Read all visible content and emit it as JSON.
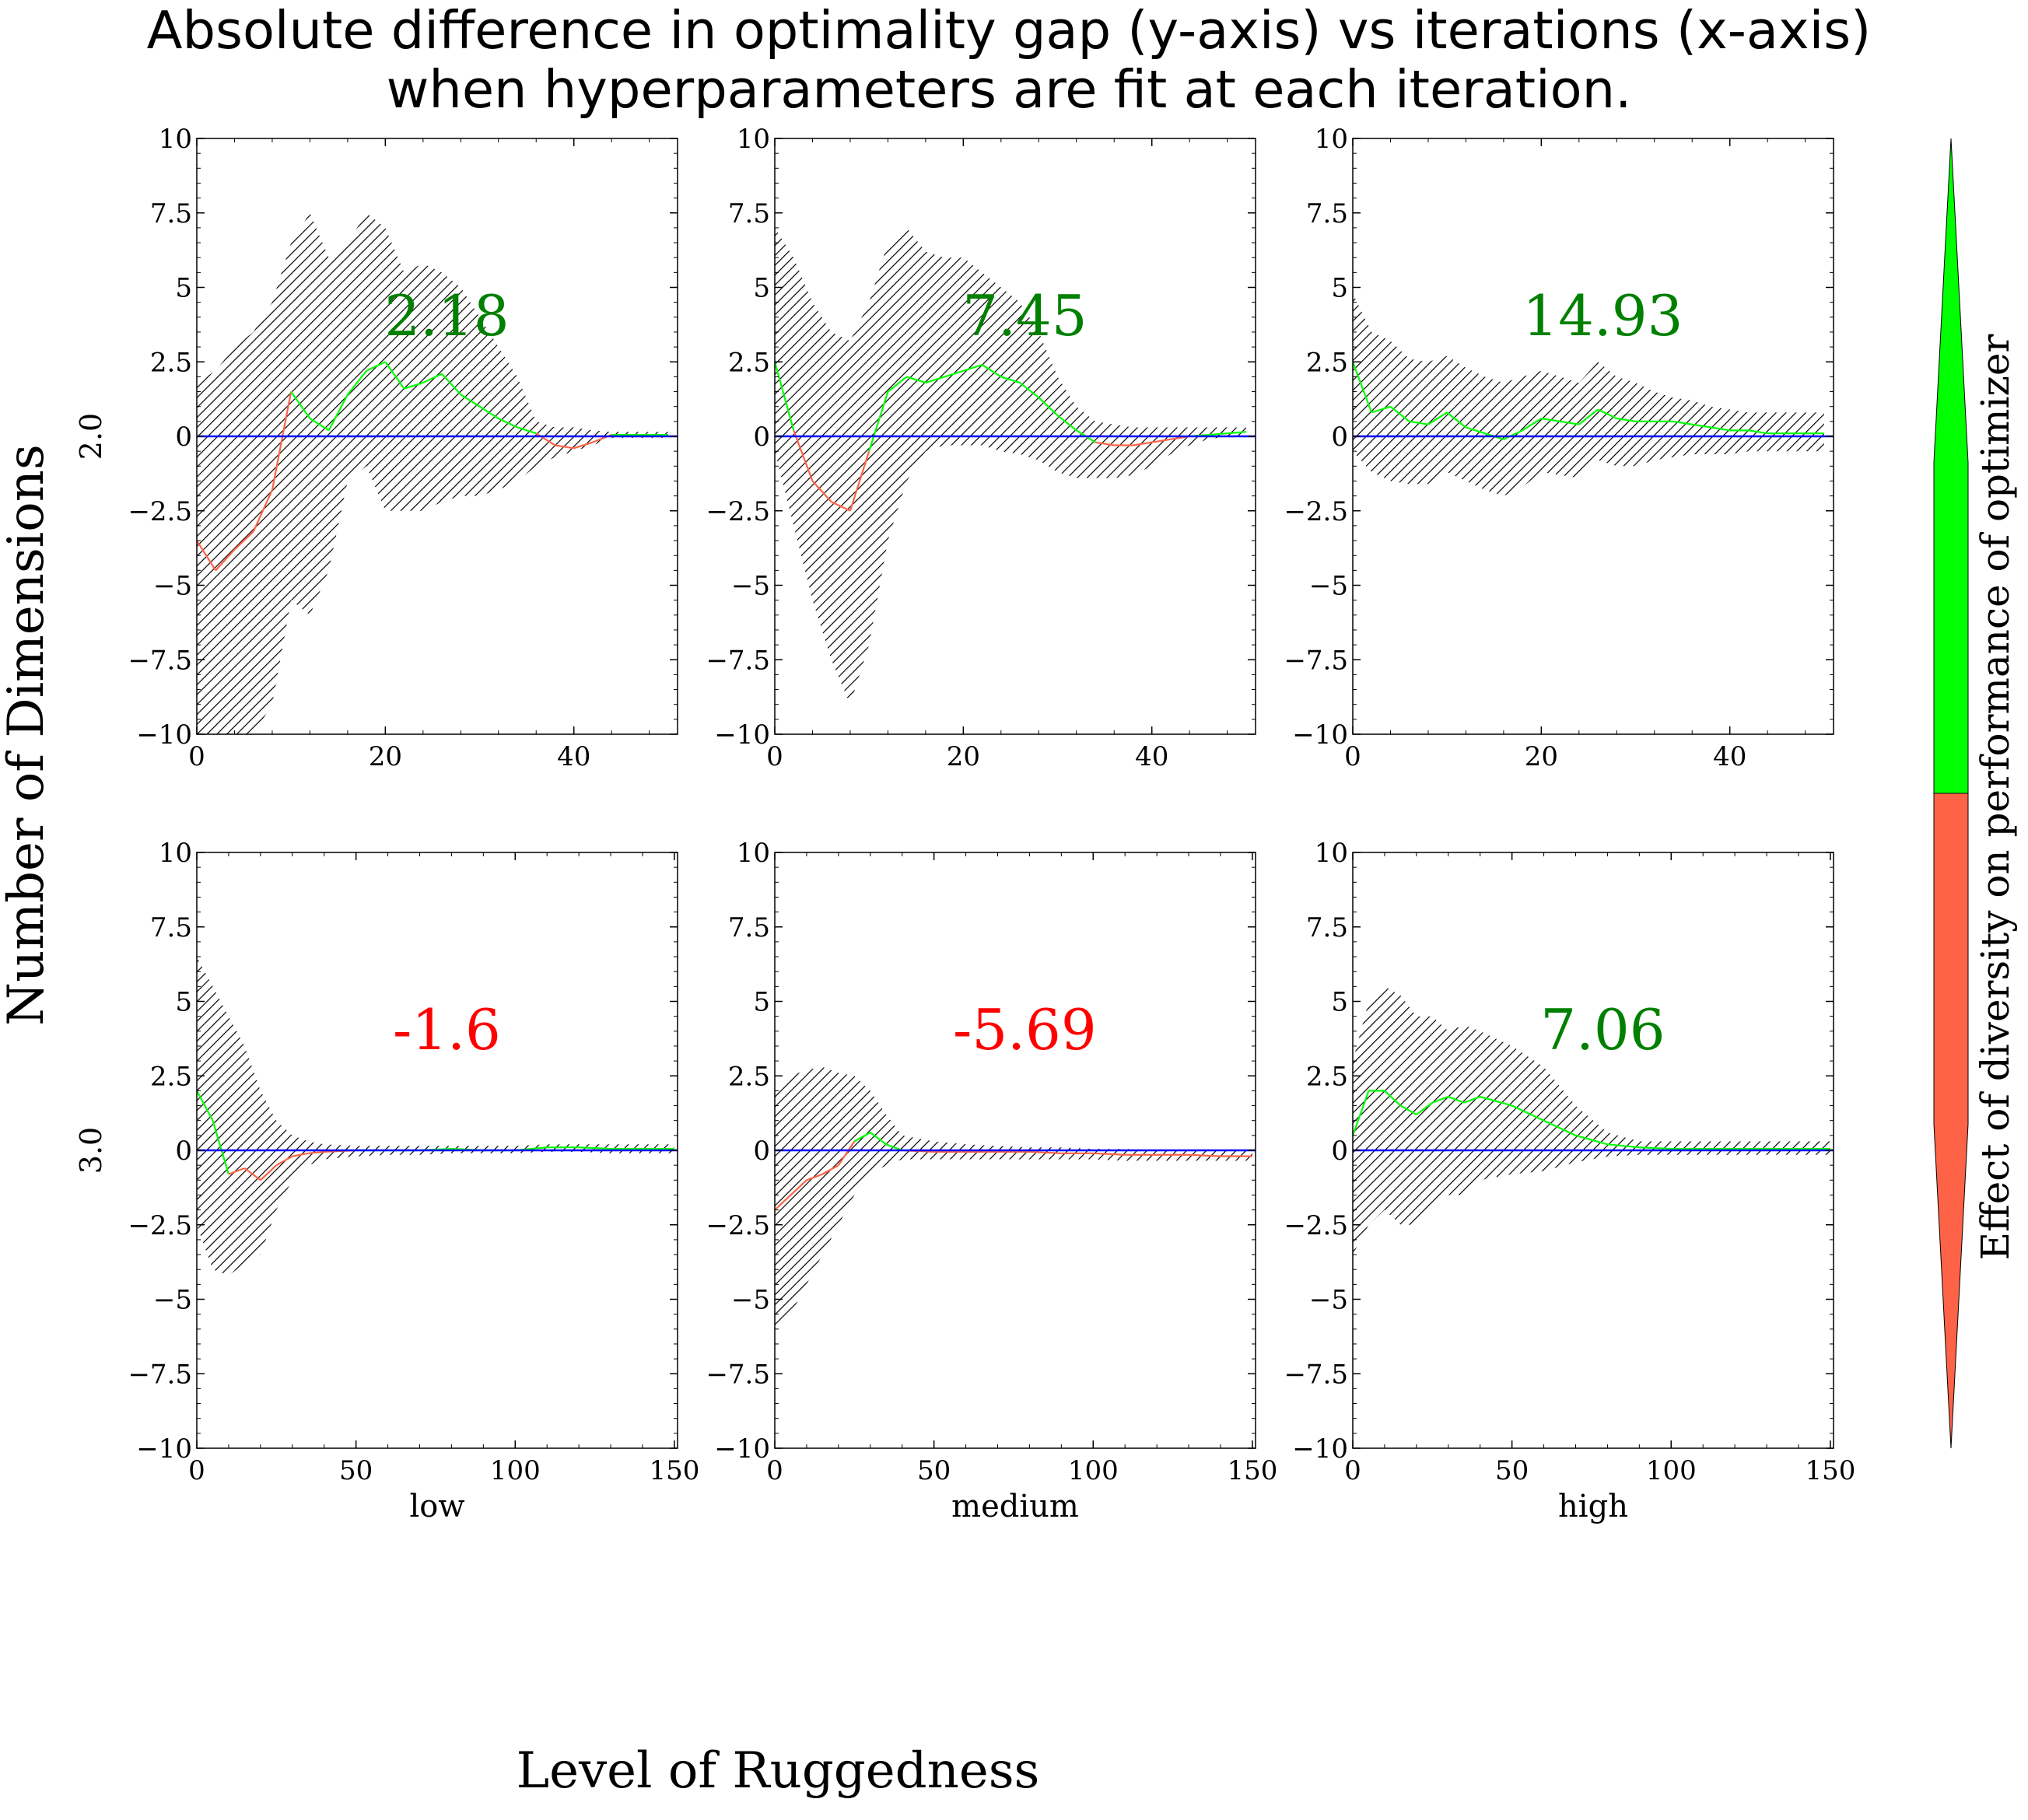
{
  "title_lines": [
    "Absolute difference in optimality gap (y-axis) vs iterations (x-axis)",
    "when hyperparameters are fit at each iteration."
  ],
  "row_axis_label": "Number of Dimensions",
  "col_axis_label": "Level of Ruggedness",
  "colorbar_label": "Effect of diversity on performance of optimizer",
  "colors": {
    "positive": "#00ff00",
    "negative": "#ff6347",
    "positive_text": "#008000",
    "negative_text": "#ff0000",
    "zero_line": "#0000ff",
    "band": "#000000"
  },
  "rows": [
    "2.0",
    "3.0"
  ],
  "cols": [
    "low",
    "medium",
    "high"
  ],
  "chart_data": [
    {
      "type": "line",
      "row": "2.0",
      "col": "low",
      "annotation": "2.18",
      "annotation_sign": "positive",
      "xlim": [
        0,
        51
      ],
      "ylim": [
        -10.0,
        10.0
      ],
      "xticks": [
        0,
        20,
        40
      ],
      "yticks": [
        -10.0,
        -7.5,
        -5.0,
        -2.5,
        0.0,
        2.5,
        5.0,
        7.5,
        10.0
      ],
      "x": [
        0,
        2,
        4,
        6,
        8,
        10,
        12,
        14,
        16,
        18,
        20,
        22,
        24,
        26,
        28,
        30,
        32,
        34,
        36,
        38,
        40,
        42,
        44,
        46,
        48,
        50
      ],
      "y": [
        -3.5,
        -4.5,
        -3.8,
        -3.2,
        -1.8,
        1.5,
        0.6,
        0.2,
        1.4,
        2.2,
        2.5,
        1.6,
        1.8,
        2.1,
        1.4,
        1.0,
        0.6,
        0.3,
        0.1,
        -0.3,
        -0.4,
        -0.2,
        0.05,
        0.05,
        0.05,
        0.05
      ],
      "upper": [
        1.8,
        2.2,
        3.0,
        3.5,
        4.5,
        6.5,
        7.5,
        6.0,
        6.5,
        7.5,
        7.0,
        5.5,
        5.8,
        5.5,
        5.0,
        4.0,
        3.0,
        2.0,
        0.5,
        0.3,
        0.3,
        0.2,
        0.15,
        0.15,
        0.15,
        0.15
      ],
      "lower": [
        -10.0,
        -10.0,
        -10.0,
        -10.0,
        -9.0,
        -5.5,
        -6.0,
        -4.5,
        -1.5,
        -1.0,
        -2.5,
        -2.5,
        -2.5,
        -2.2,
        -2.0,
        -2.0,
        -1.8,
        -1.5,
        -1.0,
        -0.7,
        -0.5,
        -0.3,
        -0.05,
        -0.05,
        -0.05,
        -0.05
      ]
    },
    {
      "type": "line",
      "row": "2.0",
      "col": "medium",
      "annotation": "7.45",
      "annotation_sign": "positive",
      "xlim": [
        0,
        51
      ],
      "ylim": [
        -10.0,
        10.0
      ],
      "xticks": [
        0,
        20,
        40
      ],
      "yticks": [
        -10.0,
        -7.5,
        -5.0,
        -2.5,
        0.0,
        2.5,
        5.0,
        7.5,
        10.0
      ],
      "x": [
        0,
        2,
        4,
        6,
        8,
        10,
        12,
        14,
        16,
        18,
        20,
        22,
        24,
        26,
        28,
        30,
        32,
        34,
        36,
        38,
        40,
        42,
        44,
        46,
        48,
        50
      ],
      "y": [
        2.5,
        0.2,
        -1.5,
        -2.2,
        -2.5,
        -0.5,
        1.5,
        2.0,
        1.8,
        2.0,
        2.2,
        2.4,
        2.0,
        1.8,
        1.3,
        0.7,
        0.2,
        -0.2,
        -0.3,
        -0.3,
        -0.2,
        -0.1,
        0.0,
        0.05,
        0.1,
        0.15
      ],
      "upper": [
        7.0,
        6.0,
        4.5,
        3.5,
        3.2,
        4.5,
        6.5,
        7.0,
        6.2,
        6.0,
        6.0,
        5.5,
        5.0,
        4.5,
        3.5,
        2.0,
        1.0,
        0.5,
        0.4,
        0.3,
        0.3,
        0.3,
        0.3,
        0.3,
        0.3,
        0.3
      ],
      "lower": [
        -0.5,
        -3.0,
        -5.5,
        -7.5,
        -9.0,
        -7.0,
        -3.5,
        -1.5,
        -0.5,
        -0.3,
        -0.3,
        -0.3,
        -0.5,
        -0.6,
        -0.8,
        -1.2,
        -1.4,
        -1.4,
        -1.4,
        -1.3,
        -1.0,
        -0.6,
        -0.3,
        -0.1,
        0.0,
        0.0
      ]
    },
    {
      "type": "line",
      "row": "2.0",
      "col": "high",
      "annotation": "14.93",
      "annotation_sign": "positive",
      "xlim": [
        0,
        51
      ],
      "ylim": [
        -10.0,
        10.0
      ],
      "xticks": [
        0,
        20,
        40
      ],
      "yticks": [
        -10.0,
        -7.5,
        -5.0,
        -2.5,
        0.0,
        2.5,
        5.0,
        7.5,
        10.0
      ],
      "x": [
        0,
        2,
        4,
        6,
        8,
        10,
        12,
        14,
        16,
        18,
        20,
        22,
        24,
        26,
        28,
        30,
        32,
        34,
        36,
        38,
        40,
        42,
        44,
        46,
        48,
        50
      ],
      "y": [
        2.5,
        0.8,
        1.0,
        0.5,
        0.4,
        0.8,
        0.3,
        0.1,
        -0.1,
        0.2,
        0.6,
        0.5,
        0.4,
        0.9,
        0.6,
        0.5,
        0.5,
        0.5,
        0.4,
        0.3,
        0.2,
        0.2,
        0.1,
        0.1,
        0.1,
        0.1
      ],
      "upper": [
        4.8,
        3.5,
        3.2,
        2.6,
        2.5,
        2.7,
        2.3,
        2.0,
        1.8,
        2.0,
        2.2,
        2.0,
        1.8,
        2.5,
        2.0,
        1.8,
        1.5,
        1.3,
        1.2,
        1.0,
        0.9,
        0.8,
        0.8,
        0.8,
        0.8,
        0.8
      ],
      "lower": [
        -0.5,
        -1.2,
        -1.5,
        -1.6,
        -1.6,
        -1.2,
        -1.5,
        -1.8,
        -2.0,
        -1.7,
        -1.2,
        -1.3,
        -1.4,
        -0.8,
        -1.0,
        -1.0,
        -0.8,
        -0.7,
        -0.6,
        -0.6,
        -0.6,
        -0.5,
        -0.5,
        -0.5,
        -0.5,
        -0.5
      ]
    },
    {
      "type": "line",
      "row": "3.0",
      "col": "low",
      "annotation": "-1.6",
      "annotation_sign": "negative",
      "xlim": [
        0,
        151
      ],
      "ylim": [
        -10.0,
        10.0
      ],
      "xticks": [
        0,
        50,
        100,
        150
      ],
      "yticks": [
        -10.0,
        -7.5,
        -5.0,
        -2.5,
        0.0,
        2.5,
        5.0,
        7.5,
        10.0
      ],
      "x": [
        0,
        5,
        10,
        15,
        20,
        25,
        30,
        35,
        40,
        50,
        60,
        70,
        80,
        90,
        100,
        110,
        120,
        130,
        140,
        150
      ],
      "y": [
        2.0,
        1.0,
        -0.8,
        -0.6,
        -1.0,
        -0.5,
        -0.2,
        -0.1,
        -0.05,
        0.0,
        0.0,
        0.0,
        0.05,
        0.0,
        0.0,
        0.1,
        0.1,
        0.05,
        0.05,
        0.05
      ],
      "upper": [
        6.5,
        5.5,
        4.5,
        3.5,
        2.0,
        1.0,
        0.5,
        0.3,
        0.2,
        0.15,
        0.15,
        0.15,
        0.15,
        0.15,
        0.15,
        0.2,
        0.2,
        0.2,
        0.2,
        0.2
      ],
      "lower": [
        -2.5,
        -4.0,
        -4.2,
        -3.8,
        -3.5,
        -2.0,
        -1.0,
        -0.5,
        -0.3,
        -0.2,
        -0.15,
        -0.15,
        -0.1,
        -0.1,
        -0.1,
        -0.05,
        -0.05,
        -0.1,
        -0.1,
        -0.1
      ]
    },
    {
      "type": "line",
      "row": "3.0",
      "col": "medium",
      "annotation": "-5.69",
      "annotation_sign": "negative",
      "xlim": [
        0,
        151
      ],
      "ylim": [
        -10.0,
        10.0
      ],
      "xticks": [
        0,
        50,
        100,
        150
      ],
      "yticks": [
        -10.0,
        -7.5,
        -5.0,
        -2.5,
        0.0,
        2.5,
        5.0,
        7.5,
        10.0
      ],
      "x": [
        0,
        5,
        10,
        15,
        20,
        25,
        30,
        35,
        40,
        50,
        60,
        70,
        80,
        90,
        100,
        110,
        120,
        130,
        140,
        150
      ],
      "y": [
        -2.0,
        -1.5,
        -1.0,
        -0.8,
        -0.5,
        0.3,
        0.6,
        0.2,
        0.0,
        -0.05,
        -0.05,
        -0.05,
        -0.05,
        -0.1,
        -0.1,
        -0.15,
        -0.15,
        -0.15,
        -0.2,
        -0.2
      ],
      "upper": [
        2.0,
        2.5,
        2.7,
        2.8,
        2.6,
        2.5,
        2.0,
        1.2,
        0.5,
        0.3,
        0.2,
        0.15,
        0.1,
        0.1,
        0.05,
        0.05,
        0.0,
        0.0,
        0.0,
        0.0
      ],
      "lower": [
        -6.0,
        -5.5,
        -4.5,
        -3.5,
        -2.5,
        -1.5,
        -0.8,
        -0.5,
        -0.3,
        -0.3,
        -0.3,
        -0.3,
        -0.3,
        -0.3,
        -0.3,
        -0.35,
        -0.35,
        -0.35,
        -0.35,
        -0.35
      ]
    },
    {
      "type": "line",
      "row": "3.0",
      "col": "high",
      "annotation": "7.06",
      "annotation_sign": "positive",
      "xlim": [
        0,
        151
      ],
      "ylim": [
        -10.0,
        10.0
      ],
      "xticks": [
        0,
        50,
        100,
        150
      ],
      "yticks": [
        -10.0,
        -7.5,
        -5.0,
        -2.5,
        0.0,
        2.5,
        5.0,
        7.5,
        10.0
      ],
      "x": [
        0,
        5,
        10,
        15,
        20,
        25,
        30,
        35,
        40,
        50,
        60,
        70,
        80,
        90,
        100,
        110,
        120,
        130,
        140,
        150
      ],
      "y": [
        0.5,
        2.0,
        2.0,
        1.5,
        1.2,
        1.6,
        1.8,
        1.6,
        1.8,
        1.5,
        1.0,
        0.5,
        0.2,
        0.1,
        0.05,
        0.05,
        0.05,
        0.05,
        0.05,
        0.05
      ],
      "upper": [
        3.0,
        5.0,
        5.5,
        5.2,
        4.5,
        4.5,
        4.0,
        4.2,
        4.0,
        3.5,
        2.8,
        1.5,
        0.6,
        0.3,
        0.3,
        0.3,
        0.3,
        0.3,
        0.3,
        0.3
      ],
      "lower": [
        -3.5,
        -2.5,
        -2.0,
        -2.5,
        -2.5,
        -2.0,
        -1.5,
        -1.5,
        -1.0,
        -0.8,
        -0.7,
        -0.4,
        -0.2,
        -0.15,
        -0.15,
        -0.15,
        -0.15,
        -0.15,
        -0.15,
        -0.15
      ]
    }
  ]
}
